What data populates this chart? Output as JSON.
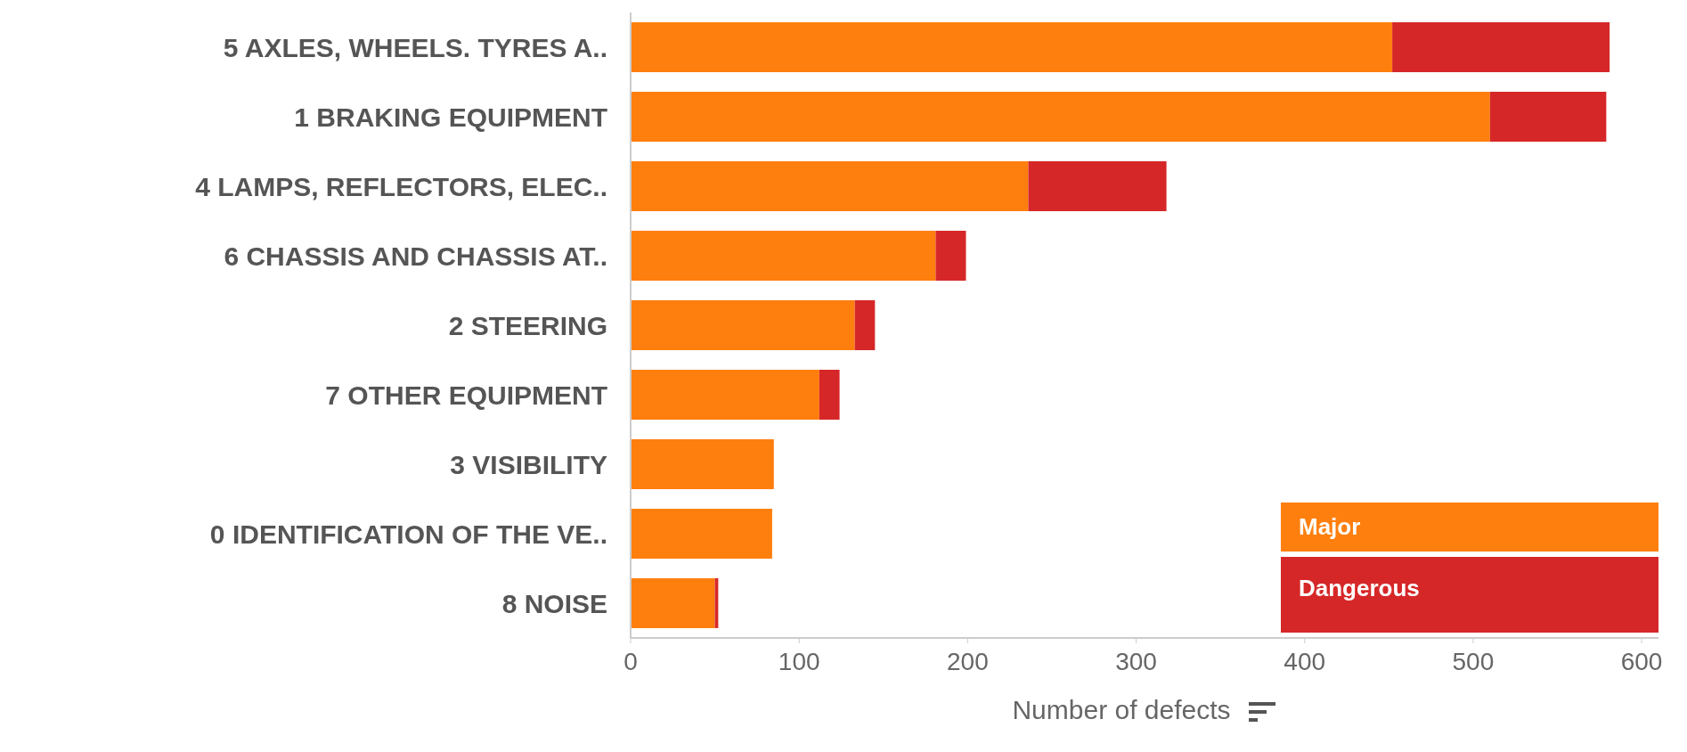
{
  "chart_data": {
    "type": "bar",
    "orientation": "horizontal",
    "stacked": true,
    "xlabel": "Number of defects",
    "categories": [
      "5 AXLES, WHEELS. TYRES   A..",
      "1 BRAKING EQUIPMENT",
      "4 LAMPS, REFLECTORS, ELEC..",
      "6 CHASSIS AND CHASSIS   AT..",
      "2 STEERING",
      "7 OTHER EQUIPMENT",
      "3 VISIBILITY",
      "0 IDENTIFICATION OF THE VE..",
      "8 NOISE"
    ],
    "series": [
      {
        "name": "Major",
        "color": "#ff7f0e",
        "values": [
          452,
          510,
          236,
          181,
          133,
          112,
          85,
          84,
          50
        ]
      },
      {
        "name": "Dangerous",
        "color": "#d62728",
        "values": [
          129,
          69,
          82,
          18,
          12,
          12,
          0,
          0,
          2
        ]
      }
    ],
    "xlim": [
      0,
      610
    ],
    "xticks": [
      0,
      100,
      200,
      300,
      400,
      500,
      600
    ],
    "legend": "bottom right"
  }
}
